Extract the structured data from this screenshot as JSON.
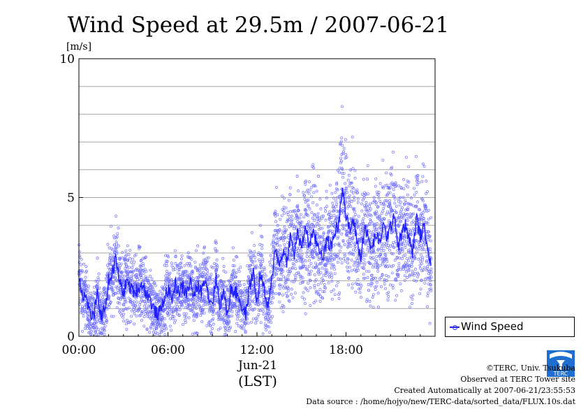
{
  "chart_data": {
    "type": "scatter",
    "title": "Wind Speed at 29.5m / 2007-06-21",
    "ylabel": "[m/s]",
    "xlabel": "(LST)",
    "x_date_label": "Jun-21",
    "ylim": [
      0,
      10
    ],
    "xlim": [
      "00:00",
      "24:00"
    ],
    "yticks": [
      "0",
      "5",
      "10"
    ],
    "xticks": [
      "00:00",
      "06:00",
      "12:00",
      "18:00"
    ],
    "grid": true,
    "legend_placement": "right",
    "series": [
      {
        "name": "Wind Speed",
        "color": "#2020ff",
        "point_color": "#7070ff",
        "line_hours": [
          0.0,
          0.25,
          0.5,
          0.75,
          1.0,
          1.25,
          1.5,
          1.75,
          2.0,
          2.25,
          2.5,
          2.75,
          3.0,
          3.25,
          3.5,
          3.75,
          4.0,
          4.25,
          4.5,
          4.75,
          5.0,
          5.25,
          5.5,
          5.75,
          6.0,
          6.25,
          6.5,
          6.75,
          7.0,
          7.25,
          7.5,
          7.75,
          8.0,
          8.25,
          8.5,
          8.75,
          9.0,
          9.25,
          9.5,
          9.75,
          10.0,
          10.25,
          10.5,
          10.75,
          11.0,
          11.25,
          11.5,
          11.75,
          12.0,
          12.25,
          12.5,
          12.75,
          13.0,
          13.25,
          13.5,
          13.75,
          14.0,
          14.25,
          14.5,
          14.75,
          15.0,
          15.25,
          15.5,
          15.75,
          16.0,
          16.25,
          16.5,
          16.75,
          17.0,
          17.25,
          17.5,
          17.75,
          18.0,
          18.25,
          18.5,
          18.75,
          19.0,
          19.25,
          19.5,
          19.75,
          20.0,
          20.25,
          20.5,
          20.75,
          21.0,
          21.25,
          21.5,
          21.75,
          22.0,
          22.25,
          22.5,
          22.75,
          23.0,
          23.25,
          23.5,
          23.75
        ],
        "line_values": [
          2.2,
          1.5,
          1.4,
          0.8,
          0.7,
          1.5,
          0.7,
          1.0,
          2.0,
          2.3,
          2.8,
          1.9,
          1.6,
          2.0,
          1.7,
          1.6,
          1.7,
          1.9,
          1.6,
          1.4,
          1.0,
          0.8,
          0.9,
          1.4,
          1.7,
          1.3,
          1.9,
          1.6,
          1.8,
          1.5,
          2.0,
          1.4,
          1.8,
          1.6,
          2.2,
          1.4,
          1.2,
          2.1,
          1.1,
          1.6,
          0.8,
          1.7,
          1.6,
          1.5,
          1.0,
          0.8,
          1.8,
          2.3,
          1.2,
          2.3,
          1.6,
          1.0,
          2.0,
          3.3,
          2.5,
          3.1,
          2.7,
          3.6,
          2.9,
          3.8,
          3.1,
          4.0,
          3.3,
          3.7,
          3.4,
          3.1,
          2.9,
          3.5,
          3.2,
          3.8,
          4.0,
          5.5,
          4.3,
          3.8,
          4.2,
          3.4,
          2.8,
          4.0,
          3.5,
          3.1,
          3.7,
          3.3,
          4.0,
          3.6,
          3.9,
          4.5,
          3.2,
          3.7,
          4.0,
          3.5,
          3.0,
          4.3,
          3.6,
          3.9,
          3.4,
          2.3
        ]
      }
    ]
  },
  "credits": {
    "copyright": "©TERC, Univ. Tsukuba",
    "observed": "Observed at TERC Tower site",
    "created": "Created Automatically at 2007-06-21/23:55:53",
    "source": "Data source : /home/hojyo/new/TERC-data/sorted_data/FLUX.10s.dat"
  },
  "logo": {
    "text": "TERC"
  }
}
